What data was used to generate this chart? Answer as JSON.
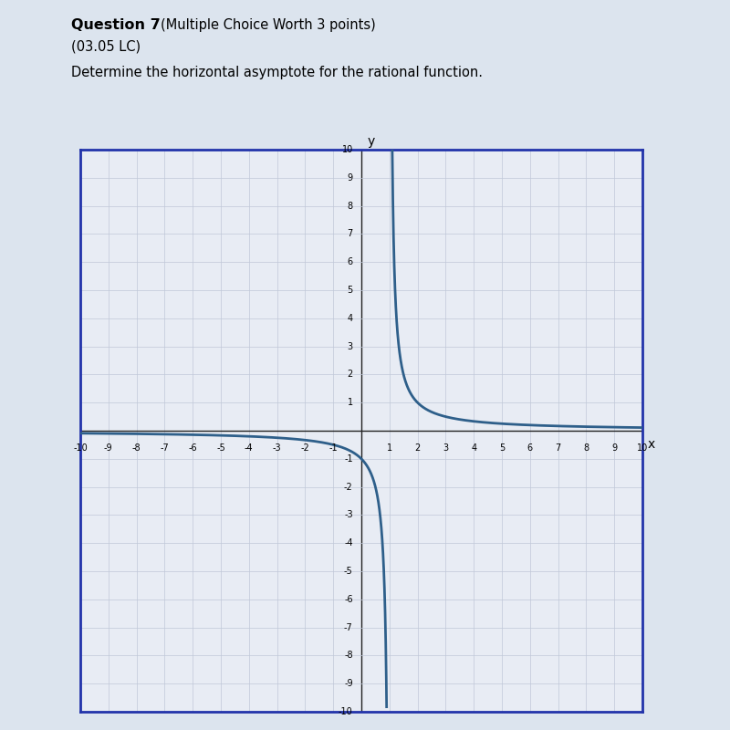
{
  "title_bold": "Question 7",
  "title_suffix": "(Multiple Choice Worth 3 points)",
  "subtitle": "(03.05 LC)",
  "question": "Determine the horizontal asymptote for the rational function.",
  "xmin": -10,
  "xmax": 10,
  "ymin": -10,
  "ymax": 10,
  "vertical_asymptote": 1,
  "horizontal_asymptote": 0,
  "curve_color": "#2e5f8a",
  "grid_color": "#c0c8d8",
  "axis_color": "#222222",
  "bg_color": "#dce4ee",
  "plot_bg_color": "#e8ecf4",
  "page_bg_color": "#e8ecf4",
  "curve_linewidth": 2.0,
  "grid_linewidth": 0.5,
  "border_color": "#2233aa",
  "axis_label_x": "x",
  "axis_label_y": "y"
}
